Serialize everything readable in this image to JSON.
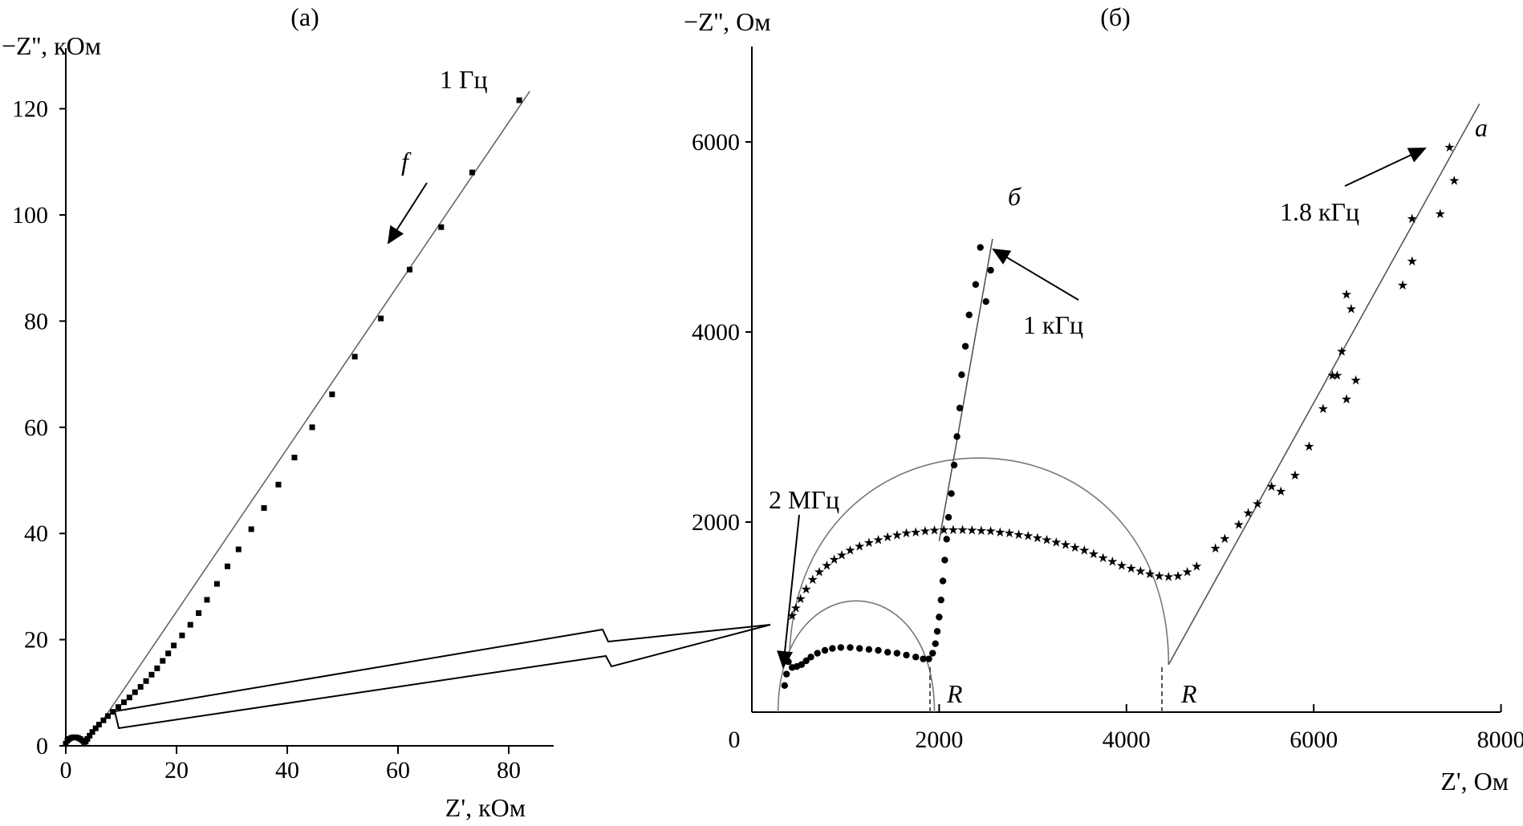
{
  "chart_data": [
    {
      "panel": "(a)",
      "type": "scatter",
      "ylabel": "−Z'', кОм",
      "xlabel": "Z', кОм",
      "xticks": [
        "0",
        "20",
        "40",
        "60",
        "80"
      ],
      "yticks": [
        "0",
        "20",
        "40",
        "60",
        "80",
        "100",
        "120"
      ],
      "xlim": [
        0,
        88
      ],
      "ylim": [
        0,
        125
      ],
      "annotations": {
        "freq_label": "1 Гц",
        "direction_label": "f"
      },
      "series": [
        {
          "points": [
            [
              0,
              0.4
            ],
            [
              0.3,
              1.0
            ],
            [
              0.6,
              1.3
            ],
            [
              1.0,
              1.5
            ],
            [
              1.4,
              1.6
            ],
            [
              1.8,
              1.6
            ],
            [
              2.2,
              1.5
            ],
            [
              2.6,
              1.3
            ],
            [
              3.0,
              1.0
            ],
            [
              3.3,
              0.7
            ],
            [
              3.6,
              0.8
            ],
            [
              3.9,
              1.3
            ],
            [
              4.3,
              1.9
            ],
            [
              4.8,
              2.6
            ],
            [
              5.4,
              3.3
            ],
            [
              6.0,
              4.0
            ],
            [
              6.8,
              4.8
            ],
            [
              7.6,
              5.6
            ],
            [
              8.5,
              6.4
            ],
            [
              9.5,
              7.3
            ],
            [
              10.5,
              8.2
            ],
            [
              11.5,
              9.1
            ],
            [
              12.5,
              10.1
            ],
            [
              13.5,
              11.1
            ],
            [
              14.5,
              12.2
            ],
            [
              15.5,
              13.4
            ],
            [
              16.5,
              14.6
            ],
            [
              17.5,
              16.0
            ],
            [
              18.5,
              17.4
            ],
            [
              19.5,
              18.9
            ],
            [
              21.0,
              20.8
            ],
            [
              22.5,
              22.8
            ],
            [
              24.0,
              25.0
            ],
            [
              25.5,
              27.5
            ],
            [
              27.3,
              30.5
            ],
            [
              29.2,
              33.8
            ],
            [
              31.2,
              37.0
            ],
            [
              33.5,
              40.8
            ],
            [
              35.8,
              44.8
            ],
            [
              38.4,
              49.2
            ],
            [
              41.3,
              54.3
            ],
            [
              44.5,
              60.0
            ],
            [
              48.1,
              66.2
            ],
            [
              52.2,
              73.3
            ],
            [
              56.9,
              80.5
            ],
            [
              62.1,
              89.7
            ],
            [
              67.8,
              97.7
            ],
            [
              73.4,
              108.0
            ],
            [
              81.9,
              121.6
            ]
          ]
        }
      ],
      "fit_line": {
        "from": [
          5.5,
          3.0
        ],
        "to": [
          83.8,
          123.3
        ]
      }
    },
    {
      "panel": "(б)",
      "type": "scatter",
      "ylabel": "−Z'', Ом",
      "xlabel": "Z', Ом",
      "xticks": [
        "0",
        "2000",
        "4000",
        "6000",
        "8000"
      ],
      "yticks": [
        "2000",
        "4000",
        "6000"
      ],
      "xlim": [
        0,
        8000
      ],
      "ylim": [
        0,
        7000
      ],
      "annotations": {
        "curve_a": "а",
        "curve_b": "б",
        "freq_2mhz": "2 МГц",
        "freq_1khz": "1 кГц",
        "freq_1_8khz": "1.8 кГц",
        "r_label_1": "R",
        "r_label_2": "R"
      },
      "series": [
        {
          "name": "б",
          "marker": "circle",
          "points": [
            [
              350,
              280
            ],
            [
              370,
              400
            ],
            [
              390,
              530
            ],
            [
              430,
              470
            ],
            [
              480,
              480
            ],
            [
              530,
              500
            ],
            [
              580,
              540
            ],
            [
              630,
              580
            ],
            [
              700,
              620
            ],
            [
              780,
              650
            ],
            [
              860,
              670
            ],
            [
              950,
              680
            ],
            [
              1050,
              680
            ],
            [
              1150,
              670
            ],
            [
              1250,
              660
            ],
            [
              1350,
              650
            ],
            [
              1450,
              630
            ],
            [
              1550,
              620
            ],
            [
              1650,
              600
            ],
            [
              1750,
              580
            ],
            [
              1830,
              560
            ],
            [
              1890,
              560
            ],
            [
              1930,
              620
            ],
            [
              1960,
              720
            ],
            [
              1980,
              850
            ],
            [
              2000,
              1000
            ],
            [
              2020,
              1180
            ],
            [
              2040,
              1380
            ],
            [
              2060,
              1600
            ],
            [
              2080,
              1820
            ],
            [
              2100,
              2050
            ],
            [
              2130,
              2300
            ],
            [
              2160,
              2600
            ],
            [
              2190,
              2900
            ],
            [
              2220,
              3200
            ],
            [
              2240,
              3550
            ],
            [
              2280,
              3850
            ],
            [
              2320,
              4180
            ],
            [
              2390,
              4500
            ],
            [
              2440,
              4890
            ],
            [
              2550,
              4650
            ],
            [
              2500,
              4320
            ]
          ]
        },
        {
          "name": "а",
          "marker": "star",
          "points": [
            [
              430,
              1020
            ],
            [
              470,
              1100
            ],
            [
              520,
              1200
            ],
            [
              580,
              1300
            ],
            [
              650,
              1400
            ],
            [
              720,
              1480
            ],
            [
              800,
              1550
            ],
            [
              880,
              1610
            ],
            [
              960,
              1660
            ],
            [
              1050,
              1710
            ],
            [
              1150,
              1750
            ],
            [
              1250,
              1790
            ],
            [
              1350,
              1820
            ],
            [
              1450,
              1850
            ],
            [
              1550,
              1870
            ],
            [
              1650,
              1890
            ],
            [
              1750,
              1900
            ],
            [
              1850,
              1910
            ],
            [
              1950,
              1920
            ],
            [
              2050,
              1925
            ],
            [
              2150,
              1925
            ],
            [
              2250,
              1925
            ],
            [
              2350,
              1920
            ],
            [
              2450,
              1915
            ],
            [
              2550,
              1910
            ],
            [
              2650,
              1900
            ],
            [
              2750,
              1890
            ],
            [
              2850,
              1875
            ],
            [
              2950,
              1860
            ],
            [
              3050,
              1840
            ],
            [
              3150,
              1820
            ],
            [
              3250,
              1795
            ],
            [
              3350,
              1770
            ],
            [
              3450,
              1740
            ],
            [
              3550,
              1710
            ],
            [
              3650,
              1670
            ],
            [
              3750,
              1630
            ],
            [
              3850,
              1590
            ],
            [
              3950,
              1550
            ],
            [
              4050,
              1520
            ],
            [
              4150,
              1490
            ],
            [
              4250,
              1460
            ],
            [
              4350,
              1440
            ],
            [
              4450,
              1430
            ],
            [
              4550,
              1440
            ],
            [
              4650,
              1480
            ],
            [
              4750,
              1540
            ],
            [
              4950,
              1730
            ],
            [
              5050,
              1830
            ],
            [
              5200,
              1980
            ],
            [
              5300,
              2100
            ],
            [
              5400,
              2200
            ],
            [
              5550,
              2380
            ],
            [
              5650,
              2330
            ],
            [
              5800,
              2500
            ],
            [
              5950,
              2800
            ],
            [
              6100,
              3200
            ],
            [
              6200,
              3550
            ],
            [
              6250,
              3550
            ],
            [
              6350,
              3300
            ],
            [
              6450,
              3500
            ],
            [
              6300,
              3800
            ],
            [
              6400,
              4250
            ],
            [
              6350,
              4400
            ],
            [
              6950,
              4500
            ],
            [
              7050,
              4750
            ],
            [
              7050,
              5200
            ],
            [
              7350,
              5250
            ],
            [
              7500,
              5600
            ],
            [
              7450,
              5950
            ]
          ]
        }
      ],
      "fit_lines": [
        {
          "name": "б-linear",
          "from": [
            2000,
            1800
          ],
          "to": [
            2570,
            4980
          ]
        },
        {
          "name": "а-linear",
          "from": [
            4450,
            500
          ],
          "to": [
            7770,
            6400
          ]
        }
      ],
      "fit_arcs": [
        {
          "name": "б-semicircle",
          "from": [
            280,
            0
          ],
          "to": [
            1950,
            0
          ],
          "peak": [
            1115,
            780
          ]
        },
        {
          "name": "а-semicircle",
          "from": [
            400,
            500
          ],
          "to": [
            4450,
            500
          ],
          "peak": [
            2400,
            1950
          ]
        }
      ]
    }
  ]
}
